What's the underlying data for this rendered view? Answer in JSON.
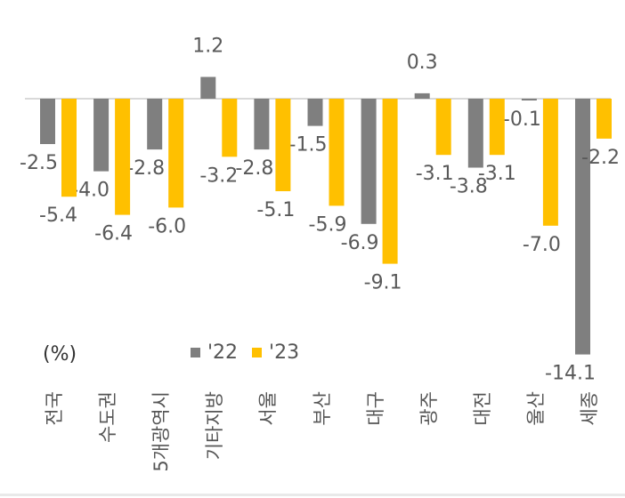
{
  "chart_data": {
    "type": "bar",
    "title": "",
    "xlabel": "",
    "ylabel": "",
    "unit_label": "(%)",
    "categories": [
      "전국",
      "수도권",
      "5개광역시",
      "기타지방",
      "서울",
      "부산",
      "대구",
      "광주",
      "대전",
      "울산",
      "세종"
    ],
    "series": [
      {
        "name": "'22",
        "color": "#7f7f7f",
        "values": [
          -2.5,
          -4.0,
          -2.8,
          1.2,
          -2.8,
          -1.5,
          -6.9,
          0.3,
          -3.8,
          -0.1,
          -14.1
        ],
        "labels": [
          "-2.5",
          "-4.0",
          "-2.8",
          "1.2",
          "-2.8",
          "-1.5",
          "-6.9",
          "0.3",
          "-3.8",
          "-0.1",
          "-14.1"
        ]
      },
      {
        "name": "'23",
        "color": "#ffc000",
        "values": [
          -5.4,
          -6.4,
          -6.0,
          -3.2,
          -5.1,
          -5.9,
          -9.1,
          -3.1,
          -3.1,
          -7.0,
          -2.2
        ],
        "labels": [
          "-5.4",
          "-6.4",
          "-6.0",
          "-3.2",
          "-5.1",
          "-5.9",
          "-9.1",
          "-3.1",
          "-3.1",
          "-7.0",
          "-2.2"
        ]
      }
    ],
    "legend_position": "bottom-center",
    "grid": false,
    "zero_line": true
  }
}
